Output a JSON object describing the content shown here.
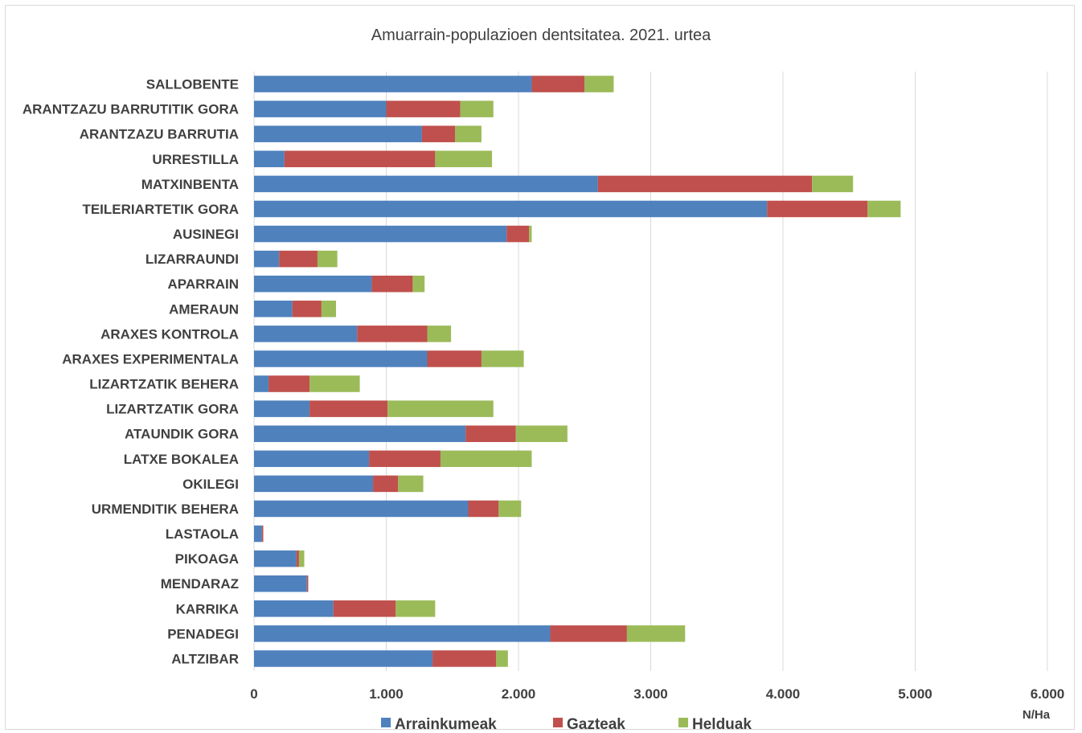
{
  "chart_data": {
    "type": "bar",
    "orientation": "horizontal",
    "stacked": true,
    "title": "Amuarrain-populazioen dentsitatea. 2021. urtea",
    "xlabel": "N/Ha",
    "ylabel": "",
    "xlim": [
      0,
      6000
    ],
    "xticks": [
      "0",
      "1.000",
      "2.000",
      "3.000",
      "4.000",
      "5.000",
      "6.000"
    ],
    "xtick_values": [
      0,
      1000,
      2000,
      3000,
      4000,
      5000,
      6000
    ],
    "grid": "vertical",
    "legend_position": "bottom",
    "categories": [
      "SALLOBENTE",
      "ARANTZAZU BARRUTITIK GORA",
      "ARANTZAZU BARRUTIA",
      "URRESTILLA",
      "MATXINBENTA",
      "TEILERIARTETIK GORA",
      "AUSINEGI",
      "LIZARRAUNDI",
      "APARRAIN",
      "AMERAUN",
      "ARAXES KONTROLA",
      "ARAXES EXPERIMENTALA",
      "LIZARTZATIK BEHERA",
      "LIZARTZATIK GORA",
      "ATAUNDIK GORA",
      "LATXE BOKALEA",
      "OKILEGI",
      "URMENDITIK BEHERA",
      "LASTAOLA",
      "PIKOAGA",
      "MENDARAZ",
      "KARRIKA",
      "PENADEGI",
      "ALTZIBAR"
    ],
    "series": [
      {
        "name": "Arrainkumeak",
        "color": "#4f81bd",
        "values": [
          2100,
          1000,
          1270,
          230,
          2600,
          3880,
          1910,
          190,
          890,
          290,
          780,
          1310,
          110,
          420,
          1600,
          870,
          900,
          1620,
          60,
          320,
          400,
          600,
          2240,
          1350
        ]
      },
      {
        "name": "Gazteak",
        "color": "#c0504d",
        "values": [
          400,
          560,
          250,
          1140,
          1620,
          760,
          170,
          290,
          310,
          220,
          530,
          410,
          310,
          590,
          380,
          540,
          190,
          230,
          10,
          20,
          10,
          470,
          580,
          480
        ]
      },
      {
        "name": "Helduak",
        "color": "#9bbb59",
        "values": [
          220,
          250,
          200,
          430,
          310,
          250,
          20,
          150,
          90,
          110,
          180,
          320,
          380,
          800,
          390,
          690,
          190,
          170,
          0,
          40,
          0,
          300,
          440,
          90
        ]
      }
    ]
  }
}
